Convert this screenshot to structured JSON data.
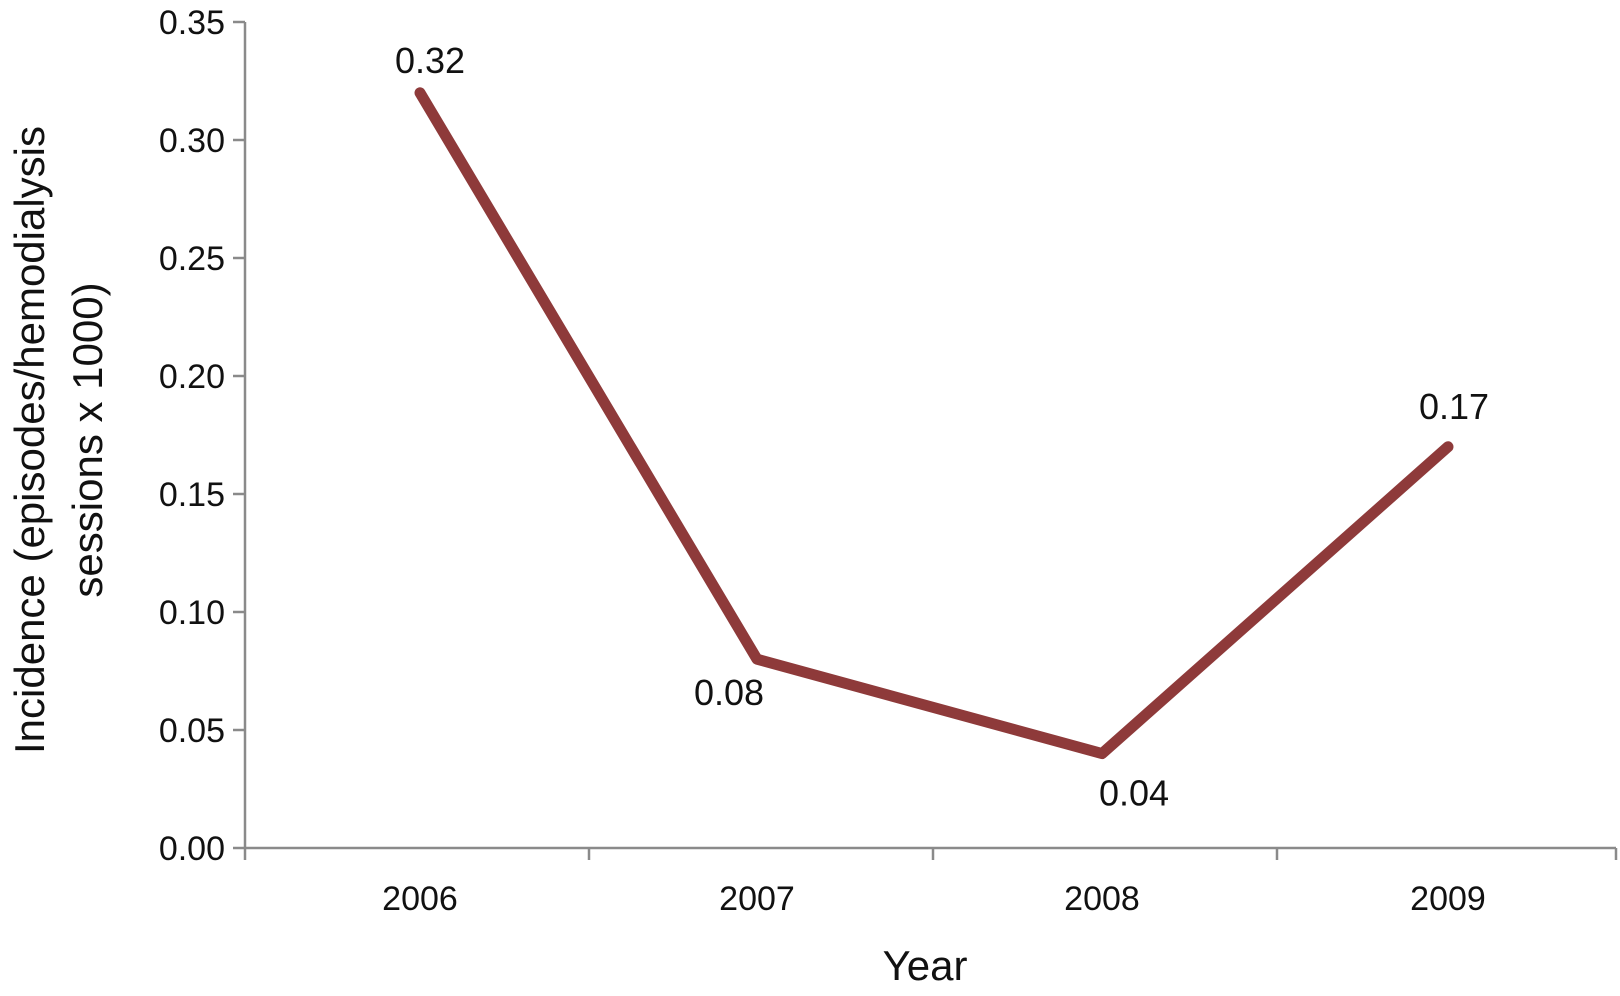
{
  "chart_data": {
    "type": "line",
    "categories": [
      "2006",
      "2007",
      "2008",
      "2009"
    ],
    "series": [
      {
        "values": [
          0.32,
          0.08,
          0.04,
          0.17
        ],
        "color": "#8e3a3a"
      }
    ],
    "data_labels": [
      "0.32",
      "0.08",
      "0.04",
      "0.17"
    ],
    "xlabel": "Year",
    "ylabel_lines": [
      "Incidence (episodes/hemodialysis",
      "sessions x 1000)"
    ],
    "ylim": [
      0,
      0.35
    ],
    "yticks": [
      "0.00",
      "0.05",
      "0.10",
      "0.15",
      "0.20",
      "0.25",
      "0.30",
      "0.35"
    ],
    "grid": false,
    "legend": "none",
    "axis_color": "#8a8a8a"
  }
}
